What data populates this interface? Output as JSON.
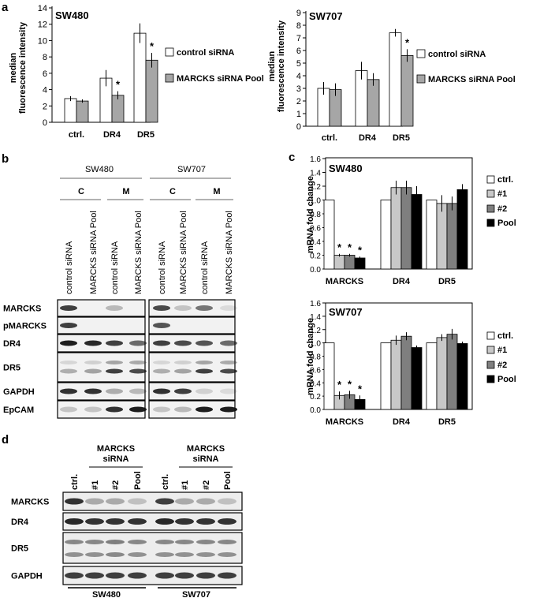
{
  "panel_labels": {
    "a": "a",
    "b": "b",
    "c": "c",
    "d": "d"
  },
  "chart_data": [
    {
      "id": "a1",
      "type": "bar",
      "title": "SW480",
      "ylabel": [
        "median",
        "fluorescence intensity"
      ],
      "ylim": [
        0,
        14
      ],
      "yticks": [
        0,
        2,
        4,
        6,
        8,
        10,
        12,
        14
      ],
      "categories": [
        "ctrl.",
        "DR4",
        "DR5"
      ],
      "series": [
        {
          "name": "control siRNA",
          "color": "#ffffff",
          "values": [
            2.9,
            5.4,
            10.9
          ],
          "errors": [
            0.3,
            1.0,
            1.2
          ],
          "sig": [
            "",
            "",
            ""
          ]
        },
        {
          "name": "MARCKS siRNA Pool",
          "color": "#a6a6a6",
          "values": [
            2.6,
            3.3,
            7.6
          ],
          "errors": [
            0.2,
            0.5,
            0.9
          ],
          "sig": [
            "",
            "*",
            "*"
          ]
        }
      ],
      "legend": "right"
    },
    {
      "id": "a2",
      "type": "bar",
      "title": "SW707",
      "ylabel": [
        "median",
        "fluorescence intensity"
      ],
      "ylim": [
        0,
        9
      ],
      "yticks": [
        0,
        1,
        2,
        3,
        4,
        5,
        6,
        7,
        8,
        9
      ],
      "categories": [
        "ctrl.",
        "DR4",
        "DR5"
      ],
      "series": [
        {
          "name": "control siRNA",
          "color": "#ffffff",
          "values": [
            3.0,
            4.4,
            7.4
          ],
          "errors": [
            0.5,
            0.7,
            0.3
          ],
          "sig": [
            "",
            "",
            ""
          ]
        },
        {
          "name": "MARCKS siRNA Pool",
          "color": "#a6a6a6",
          "values": [
            2.9,
            3.7,
            5.6
          ],
          "errors": [
            0.5,
            0.5,
            0.5
          ],
          "sig": [
            "",
            "",
            "*"
          ]
        }
      ],
      "legend": "right"
    },
    {
      "id": "c1",
      "type": "bar",
      "title": "SW480",
      "ylabel": [
        "mRNA fold change"
      ],
      "ylim": [
        0,
        1.6
      ],
      "yticks": [
        0,
        0.2,
        0.4,
        0.6,
        0.8,
        1.0,
        1.2,
        1.4,
        1.6
      ],
      "categories": [
        "MARCKS",
        "DR4",
        "DR5"
      ],
      "series": [
        {
          "name": "ctrl.",
          "color": "#ffffff",
          "values": [
            1.0,
            1.0,
            1.0
          ],
          "errors": [
            0,
            0,
            0
          ],
          "sig": [
            "",
            "",
            ""
          ]
        },
        {
          "name": "#1",
          "color": "#c8c8c8",
          "values": [
            0.2,
            1.18,
            0.95
          ],
          "errors": [
            0.02,
            0.1,
            0.12
          ],
          "sig": [
            "*",
            "",
            ""
          ]
        },
        {
          "name": "#2",
          "color": "#7f7f7f",
          "values": [
            0.2,
            1.18,
            0.95
          ],
          "errors": [
            0.02,
            0.1,
            0.1
          ],
          "sig": [
            "*",
            "",
            ""
          ]
        },
        {
          "name": "Pool",
          "color": "#000000",
          "values": [
            0.16,
            1.08,
            1.15
          ],
          "errors": [
            0.02,
            0.12,
            0.08
          ],
          "sig": [
            "*",
            "",
            ""
          ]
        }
      ],
      "legend": "right"
    },
    {
      "id": "c2",
      "type": "bar",
      "title": "SW707",
      "ylabel": [
        "mRNA fold change"
      ],
      "ylim": [
        0,
        1.6
      ],
      "yticks": [
        0,
        0.2,
        0.4,
        0.6,
        0.8,
        1.0,
        1.2,
        1.4,
        1.6
      ],
      "categories": [
        "MARCKS",
        "DR4",
        "DR5"
      ],
      "series": [
        {
          "name": "ctrl.",
          "color": "#ffffff",
          "values": [
            1.0,
            1.0,
            1.0
          ],
          "errors": [
            0,
            0,
            0
          ],
          "sig": [
            "",
            "",
            ""
          ]
        },
        {
          "name": "#1",
          "color": "#c8c8c8",
          "values": [
            0.21,
            1.04,
            1.08
          ],
          "errors": [
            0.06,
            0.07,
            0.05
          ],
          "sig": [
            "*",
            "",
            ""
          ]
        },
        {
          "name": "#2",
          "color": "#7f7f7f",
          "values": [
            0.22,
            1.1,
            1.13
          ],
          "errors": [
            0.06,
            0.06,
            0.08
          ],
          "sig": [
            "*",
            "",
            ""
          ]
        },
        {
          "name": "Pool",
          "color": "#000000",
          "values": [
            0.15,
            0.93,
            0.99
          ],
          "errors": [
            0.06,
            0.03,
            0.03
          ],
          "sig": [
            "*",
            "",
            ""
          ]
        }
      ],
      "legend": "right"
    }
  ],
  "blot_b": {
    "cell_lines": [
      "SW480",
      "SW707"
    ],
    "groups": [
      "C",
      "M",
      "C",
      "M"
    ],
    "lanes": [
      "control siRNA",
      "MARCKS siRNA Pool",
      "control siRNA",
      "MARCKS siRNA Pool",
      "control siRNA",
      "MARCKS siRNA Pool",
      "control siRNA",
      "MARCKS siRNA Pool"
    ],
    "rows": [
      "MARCKS",
      "pMARCKS",
      "DR4",
      "DR5",
      "GAPDH",
      "EpCAM"
    ]
  },
  "blot_d": {
    "group_labels": [
      "MARCKS siRNA",
      "MARCKS siRNA"
    ],
    "lanes": [
      "ctrl.",
      "#1",
      "#2",
      "Pool",
      "ctrl.",
      "#1",
      "#2",
      "Pool"
    ],
    "rows": [
      "MARCKS",
      "DR4",
      "DR5",
      "GAPDH"
    ],
    "cell_lines": [
      "SW480",
      "SW707"
    ]
  }
}
